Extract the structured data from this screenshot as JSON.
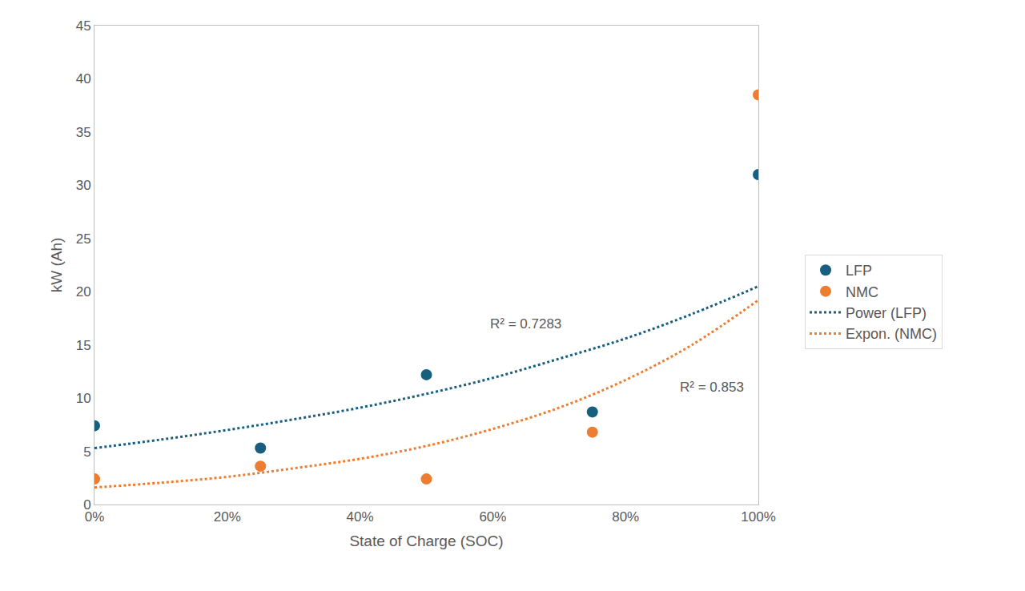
{
  "chart_data": {
    "type": "scatter",
    "x_label": "State of Charge (SOC)",
    "y_label": "kW (Ah)",
    "xlim": [
      0,
      100
    ],
    "xticks": [
      {
        "value": 0,
        "label": "0%"
      },
      {
        "value": 20,
        "label": "20%"
      },
      {
        "value": 40,
        "label": "40%"
      },
      {
        "value": 60,
        "label": "60%"
      },
      {
        "value": 80,
        "label": "80%"
      },
      {
        "value": 100,
        "label": "100%"
      }
    ],
    "ylim": [
      0,
      45
    ],
    "yticks": [
      0,
      5,
      10,
      15,
      20,
      25,
      30,
      35,
      40,
      45
    ],
    "grid": false,
    "legend": "right",
    "series": [
      {
        "name": "LFP",
        "type": "scatter",
        "marker": "circle",
        "color": "#175e7f",
        "x": [
          0,
          25,
          50,
          75,
          100
        ],
        "values": [
          7.4,
          5.3,
          12.2,
          8.7,
          31
        ]
      },
      {
        "name": "NMC",
        "type": "scatter",
        "marker": "circle",
        "color": "#ed7d31",
        "x": [
          0,
          25,
          50,
          75,
          100
        ],
        "values": [
          2.4,
          3.6,
          2.4,
          6.8,
          38.5
        ]
      },
      {
        "name": "Power (LFP)",
        "type": "line",
        "line_style": "dotted",
        "marker": "none",
        "color": "#175e7f",
        "x": [
          0,
          10,
          20,
          30,
          40,
          50,
          60,
          70,
          80,
          90,
          100
        ],
        "values": [
          5.3,
          6.1,
          7.0,
          8.0,
          9.1,
          10.4,
          11.9,
          13.7,
          15.6,
          17.9,
          20.5
        ]
      },
      {
        "name": "Expon. (NMC)",
        "type": "line",
        "line_style": "dotted",
        "marker": "none",
        "color": "#ed7d31",
        "x": [
          0,
          10,
          20,
          30,
          40,
          50,
          60,
          70,
          80,
          90,
          100
        ],
        "values": [
          1.6,
          2.05,
          2.6,
          3.4,
          4.3,
          5.5,
          7.1,
          9.1,
          11.7,
          15.0,
          19.2
        ]
      }
    ],
    "annotations": [
      {
        "text": "R² = 0.7283",
        "x": 65,
        "y": 17.0
      },
      {
        "text": "R² = 0.853",
        "x": 93,
        "y": 11.0
      }
    ]
  }
}
